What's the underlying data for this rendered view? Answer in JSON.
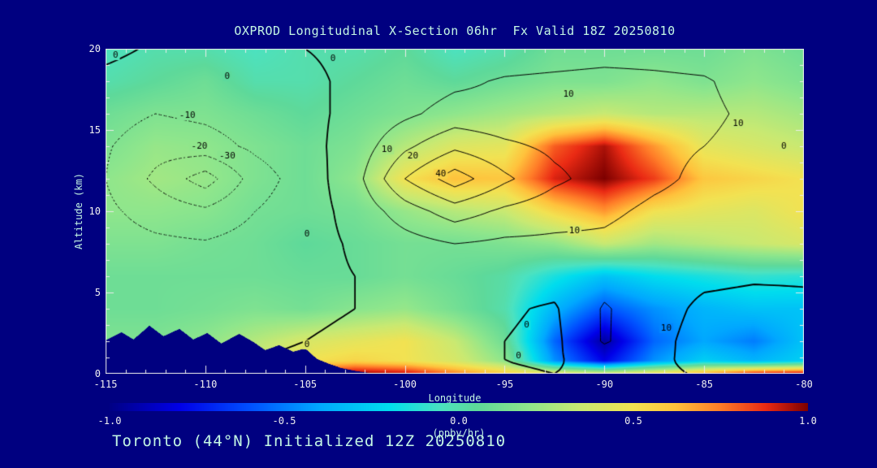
{
  "title": "OXPROD Longitudinal X-Section 06hr  Fx Valid 18Z 20250810",
  "footer": "Toronto (44°N) Initialized 12Z 20250810",
  "colors": {
    "background": "#000080",
    "accent_text": "#c4f7e4",
    "tick_text": "#f0f0f0",
    "frame": "#ebebeb",
    "contour_line": "#000000",
    "terrain": "#000080"
  },
  "axes": {
    "x": {
      "label": "Longitude",
      "min": -115,
      "max": -80,
      "ticks": [
        {
          "v": -115,
          "label": "-115"
        },
        {
          "v": -110,
          "label": "-110"
        },
        {
          "v": -105,
          "label": "-105"
        },
        {
          "v": -100,
          "label": "-100"
        },
        {
          "v": -95,
          "label": "-95"
        },
        {
          "v": -90,
          "label": "-90"
        },
        {
          "v": -85,
          "label": "-85"
        },
        {
          "v": -80,
          "label": "-80"
        }
      ]
    },
    "y": {
      "label": "Altitude (km)",
      "min": 0,
      "max": 20,
      "ticks": [
        {
          "v": 0,
          "label": "0"
        },
        {
          "v": 5,
          "label": "5"
        },
        {
          "v": 10,
          "label": "10"
        },
        {
          "v": 15,
          "label": "15"
        },
        {
          "v": 20,
          "label": "20"
        }
      ]
    }
  },
  "colorbar": {
    "unit": "(ppbv/hr)",
    "min": -1.0,
    "max": 1.0,
    "ticks": [
      {
        "v": -1.0,
        "label": "-1.0"
      },
      {
        "v": -0.5,
        "label": "-0.5"
      },
      {
        "v": 0.0,
        "label": "0.0"
      },
      {
        "v": 0.5,
        "label": "0.5"
      },
      {
        "v": 1.0,
        "label": "1.0"
      }
    ],
    "stops": [
      [
        -1.0,
        "#000085"
      ],
      [
        -0.8,
        "#0000e8"
      ],
      [
        -0.6,
        "#0050ff"
      ],
      [
        -0.4,
        "#00a8ff"
      ],
      [
        -0.2,
        "#00ddee"
      ],
      [
        -0.05,
        "#4ce2c0"
      ],
      [
        0.05,
        "#5ed99a"
      ],
      [
        0.2,
        "#8fe68c"
      ],
      [
        0.35,
        "#c9e972"
      ],
      [
        0.5,
        "#f2e252"
      ],
      [
        0.62,
        "#ffc23c"
      ],
      [
        0.75,
        "#ff7c28"
      ],
      [
        0.88,
        "#ea2a14"
      ],
      [
        1.0,
        "#7d0000"
      ]
    ]
  },
  "chart_data": {
    "type": "heatmap",
    "title": "OXPROD Longitudinal X-Section 06hr  Fx Valid 18Z 20250810",
    "xlabel": "Longitude",
    "ylabel": "Altitude (km)",
    "xlim": [
      -115,
      -80
    ],
    "ylim": [
      0,
      20
    ],
    "value_units": "ppbv/hr",
    "value_range": [
      -1.0,
      1.0
    ],
    "x_lons": [
      -115,
      -112.5,
      -110,
      -107.5,
      -105,
      -102.5,
      -100,
      -97.5,
      -95,
      -92.5,
      -90,
      -87.5,
      -85,
      -82.5,
      -80
    ],
    "y_alts": [
      0,
      0.8,
      2,
      4,
      6,
      8,
      10,
      12,
      14,
      16,
      18,
      20
    ],
    "fill_values_ppbv_hr": [
      [
        0.3,
        0.3,
        0.3,
        0.5,
        0.85,
        1.0,
        0.95,
        0.75,
        0.6,
        0.5,
        0.45,
        0.55,
        0.7,
        0.95,
        1.0
      ],
      [
        0.2,
        0.2,
        0.25,
        0.35,
        0.5,
        0.55,
        0.5,
        0.4,
        0.2,
        -0.45,
        -0.8,
        -0.45,
        -0.25,
        -0.35,
        -0.25
      ],
      [
        0.15,
        0.15,
        0.2,
        0.3,
        0.4,
        0.45,
        0.5,
        0.35,
        0.1,
        -0.55,
        -0.95,
        -0.55,
        -0.4,
        -0.5,
        -0.3
      ],
      [
        0.1,
        0.1,
        0.12,
        0.15,
        0.12,
        0.18,
        0.22,
        0.12,
        0.0,
        -0.35,
        -0.6,
        -0.45,
        -0.35,
        -0.3,
        -0.3
      ],
      [
        0.1,
        0.1,
        0.1,
        0.1,
        0.08,
        0.08,
        0.12,
        0.08,
        0.02,
        -0.15,
        -0.3,
        -0.2,
        -0.15,
        -0.1,
        -0.12
      ],
      [
        0.15,
        0.15,
        0.12,
        0.1,
        0.05,
        0.08,
        0.12,
        0.12,
        0.15,
        0.2,
        0.35,
        0.25,
        0.3,
        0.35,
        0.4
      ],
      [
        0.2,
        0.2,
        0.18,
        0.12,
        0.1,
        0.12,
        0.22,
        0.3,
        0.35,
        0.55,
        0.7,
        0.5,
        0.45,
        0.42,
        0.5
      ],
      [
        0.2,
        0.25,
        0.22,
        0.15,
        0.1,
        0.2,
        0.5,
        0.62,
        0.6,
        0.9,
        1.0,
        0.85,
        0.6,
        0.55,
        0.5
      ],
      [
        0.15,
        0.22,
        0.2,
        0.15,
        0.1,
        0.15,
        0.3,
        0.42,
        0.45,
        0.8,
        0.95,
        0.7,
        0.45,
        0.4,
        0.35
      ],
      [
        0.1,
        0.15,
        0.15,
        0.1,
        0.05,
        0.1,
        0.15,
        0.2,
        0.25,
        0.3,
        0.35,
        0.3,
        0.3,
        0.3,
        0.25
      ],
      [
        0.0,
        0.05,
        0.1,
        0.0,
        0.0,
        0.05,
        0.1,
        0.05,
        0.1,
        0.15,
        0.15,
        0.2,
        0.15,
        0.2,
        0.15
      ],
      [
        -0.05,
        0.0,
        0.0,
        -0.05,
        0.0,
        0.0,
        0.05,
        -0.05,
        0.0,
        0.1,
        0.1,
        0.1,
        0.1,
        0.15,
        0.1
      ]
    ],
    "contour_levels": [
      -30,
      -20,
      -10,
      0,
      10,
      20,
      30,
      40
    ],
    "contour_values": [
      [
        0,
        0,
        0,
        1,
        2,
        3,
        3,
        2,
        1,
        0,
        2,
        2,
        -1,
        -2,
        -1
      ],
      [
        0,
        -1,
        -1,
        0,
        1,
        2,
        2,
        1,
        0,
        -1,
        4,
        2,
        -3,
        -4,
        -2
      ],
      [
        -1,
        -2,
        -2,
        -1,
        0,
        1,
        2,
        1,
        0,
        -2,
        11,
        3,
        -4,
        -5,
        -3
      ],
      [
        -2,
        -3,
        -3,
        -2,
        -1,
        0,
        2,
        2,
        1,
        -1,
        11,
        4,
        -2,
        -3,
        -2
      ],
      [
        -4,
        -5,
        -5,
        -4,
        -2,
        0,
        3,
        4,
        4,
        4,
        6,
        4,
        2,
        1,
        1
      ],
      [
        -6,
        -8,
        -9,
        -6,
        -3,
        1,
        6,
        10,
        8,
        8,
        8,
        5,
        4,
        3,
        2
      ],
      [
        -8,
        -14,
        -18,
        -10,
        -4,
        3,
        15,
        25,
        18,
        14,
        12,
        8,
        6,
        4,
        3
      ],
      [
        -10,
        -22,
        -35,
        -15,
        -5,
        6,
        30,
        45,
        32,
        22,
        16,
        12,
        8,
        6,
        4
      ],
      [
        -9,
        -16,
        -14,
        -8,
        -3,
        4,
        18,
        28,
        22,
        18,
        16,
        12,
        10,
        7,
        4
      ],
      [
        -6,
        -10,
        -8,
        -5,
        -2,
        2,
        8,
        14,
        13,
        14,
        16,
        13,
        12,
        8,
        3
      ],
      [
        -2,
        -4,
        -3,
        -2,
        -1,
        1,
        4,
        8,
        11,
        12,
        13,
        12,
        11,
        6,
        2
      ],
      [
        2,
        -1,
        -2,
        -1,
        0,
        1,
        2,
        3,
        4,
        5,
        6,
        6,
        5,
        3,
        2
      ]
    ],
    "contour_labels": [
      {
        "lon": -114.5,
        "alt": 19.6,
        "text": "0"
      },
      {
        "lon": -108.9,
        "alt": 18.3,
        "text": "0"
      },
      {
        "lon": -103.6,
        "alt": 19.4,
        "text": "0"
      },
      {
        "lon": -110.9,
        "alt": 15.9,
        "text": "-10"
      },
      {
        "lon": -110.3,
        "alt": 14.0,
        "text": "-20"
      },
      {
        "lon": -108.9,
        "alt": 13.4,
        "text": "-30"
      },
      {
        "lon": -100.9,
        "alt": 13.8,
        "text": "10"
      },
      {
        "lon": -99.6,
        "alt": 13.4,
        "text": "20"
      },
      {
        "lon": -98.2,
        "alt": 12.3,
        "text": "40"
      },
      {
        "lon": -91.8,
        "alt": 17.2,
        "text": "10"
      },
      {
        "lon": -83.3,
        "alt": 15.4,
        "text": "10"
      },
      {
        "lon": -81.0,
        "alt": 14.0,
        "text": "0"
      },
      {
        "lon": -104.9,
        "alt": 8.6,
        "text": "0"
      },
      {
        "lon": -91.5,
        "alt": 8.8,
        "text": "10"
      },
      {
        "lon": -104.9,
        "alt": 1.8,
        "text": "0"
      },
      {
        "lon": -93.9,
        "alt": 3.0,
        "text": "0"
      },
      {
        "lon": -86.9,
        "alt": 2.8,
        "text": "10"
      },
      {
        "lon": -94.3,
        "alt": 1.1,
        "text": "0"
      }
    ],
    "terrain_profile": [
      [
        -115,
        2.05
      ],
      [
        -114.2,
        2.55
      ],
      [
        -113.6,
        2.1
      ],
      [
        -112.8,
        2.95
      ],
      [
        -112.1,
        2.3
      ],
      [
        -111.3,
        2.75
      ],
      [
        -110.6,
        2.1
      ],
      [
        -109.9,
        2.5
      ],
      [
        -109.2,
        1.85
      ],
      [
        -108.3,
        2.45
      ],
      [
        -107.6,
        1.95
      ],
      [
        -107.0,
        1.45
      ],
      [
        -106.3,
        1.75
      ],
      [
        -105.6,
        1.35
      ],
      [
        -105.0,
        1.55
      ],
      [
        -104.4,
        0.9
      ],
      [
        -103.8,
        0.6
      ],
      [
        -103.2,
        0.35
      ],
      [
        -102.4,
        0.15
      ],
      [
        -101.5,
        0.0
      ]
    ]
  }
}
